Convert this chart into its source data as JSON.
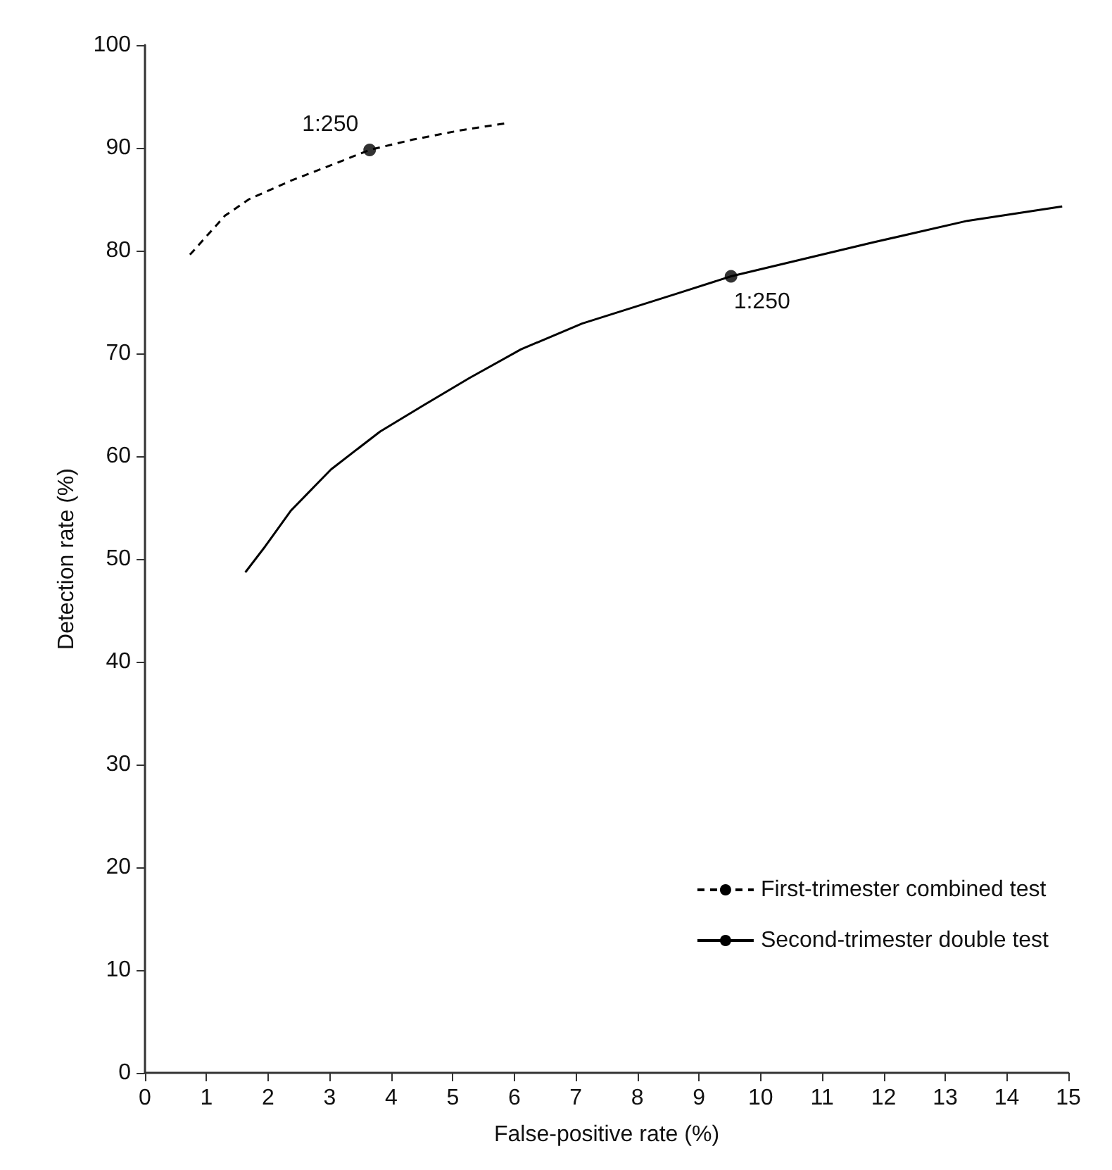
{
  "chart_data": {
    "type": "line",
    "xlabel": "False-positive rate (%)",
    "ylabel": "Detection rate (%)",
    "xlim": [
      0,
      15
    ],
    "xticks": [
      0,
      1,
      2,
      3,
      4,
      5,
      6,
      7,
      8,
      9,
      10,
      11,
      12,
      13,
      14,
      15
    ],
    "ylim": [
      0,
      100
    ],
    "yticks": [
      0,
      10,
      20,
      30,
      40,
      50,
      60,
      70,
      80,
      90,
      100
    ],
    "grid": false,
    "legend": "bottom right",
    "series": [
      {
        "name": "First-trimester combined test",
        "color": "#000000",
        "line_style": "dashed",
        "marker": "none",
        "x": [
          0.73,
          1.3,
          1.69,
          2.37,
          3.06,
          3.65,
          4.35,
          5.12,
          5.88
        ],
        "values": [
          79.6,
          83.4,
          85.0,
          86.8,
          88.4,
          89.8,
          90.8,
          91.7,
          92.4
        ]
      },
      {
        "name": "Second-trimester double test",
        "color": "#000000",
        "line_style": "solid",
        "marker": "none",
        "x": [
          1.63,
          1.95,
          2.37,
          3.02,
          3.82,
          4.51,
          5.27,
          6.11,
          7.1,
          8.63,
          9.52,
          11.83,
          13.36,
          14.9
        ],
        "values": [
          48.7,
          51.2,
          54.7,
          58.7,
          62.4,
          64.9,
          67.6,
          70.4,
          72.9,
          75.8,
          77.5,
          80.8,
          82.9,
          84.3
        ]
      },
      {
        "type": "scatter",
        "color": "#000000",
        "marker": "circle",
        "x": [
          3.65,
          9.52
        ],
        "values": [
          89.8,
          77.5
        ]
      }
    ],
    "annotations": [
      {
        "text": "1:250",
        "x": 3.65,
        "y": 89.8
      },
      {
        "text": "1:250",
        "x": 9.52,
        "y": 77.5
      }
    ]
  }
}
